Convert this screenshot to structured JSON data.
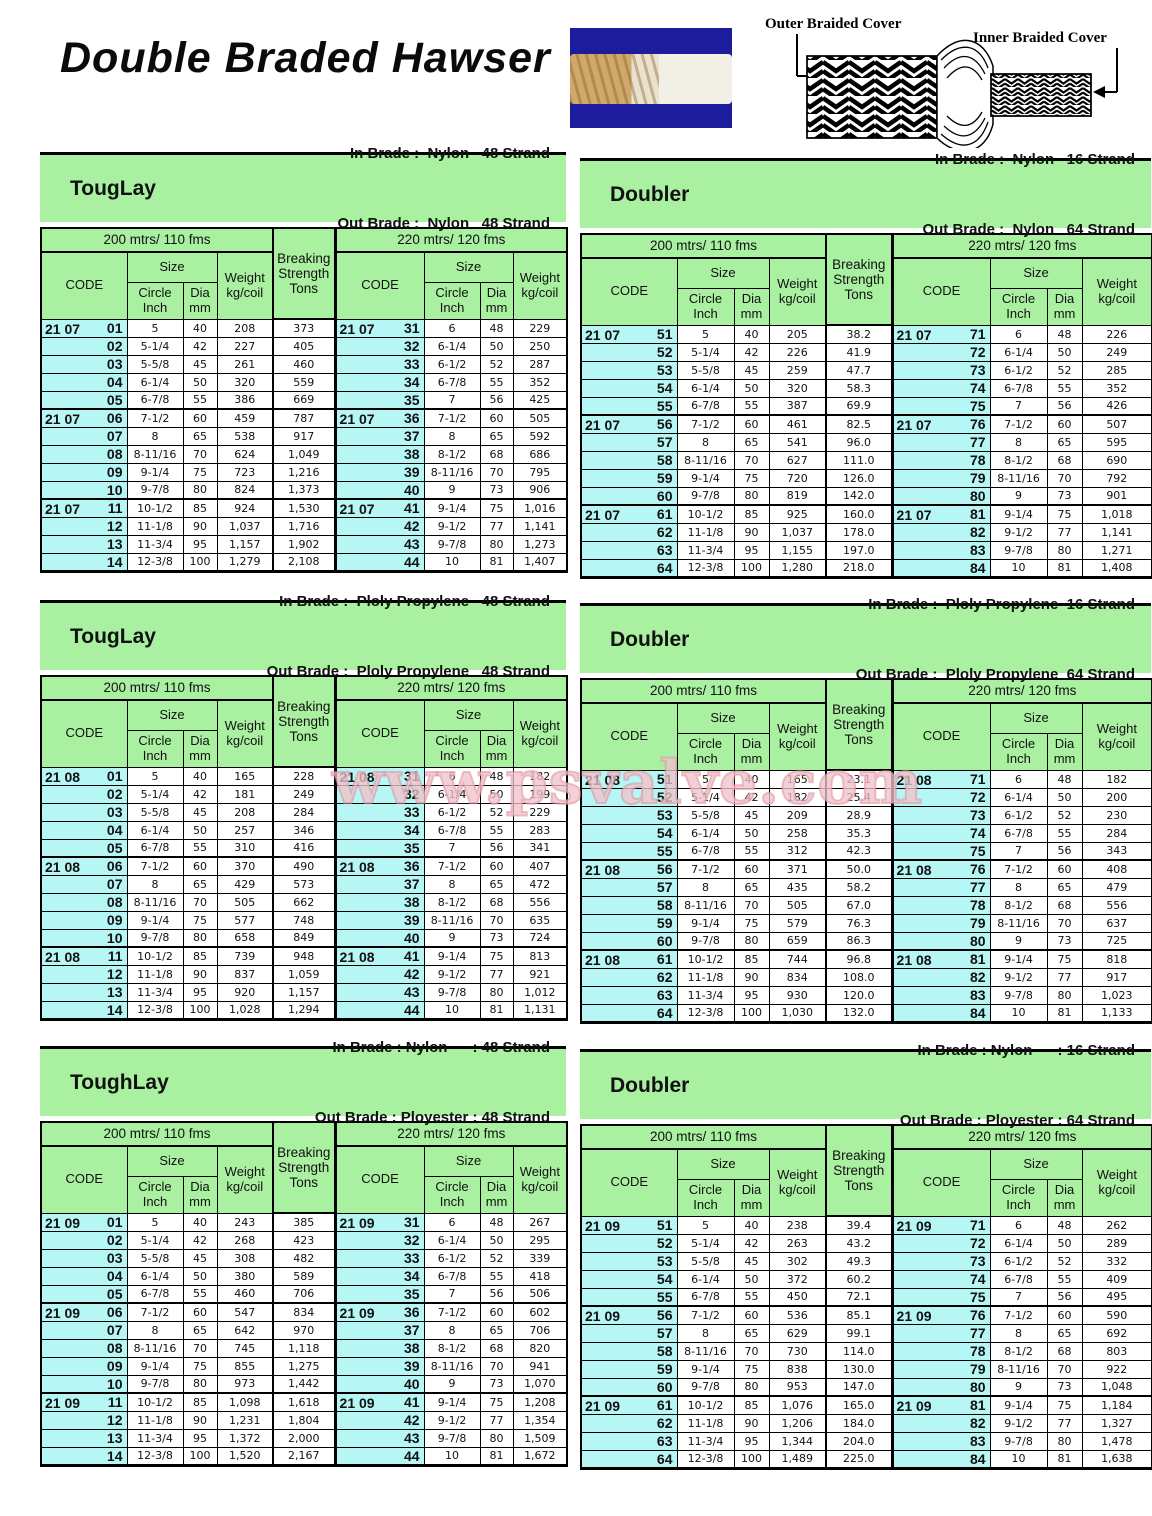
{
  "page": {
    "title": "Double Braded Hawser",
    "watermark": "www.psvalve.com"
  },
  "diagram": {
    "outer_label": "Outer Braided Cover",
    "inner_label": "Inner Braided Cover"
  },
  "colors": {
    "header_green": "#a9f0a1",
    "code_cyan": "#b6f6f4",
    "watermark_pink": "#e094a0",
    "photo_blue": "#1c1c9c"
  },
  "headers": {
    "len200": "200 mtrs/ 110 fms",
    "len220": "220 mtrs/ 120 fms",
    "code": "CODE",
    "size": "Size",
    "circle": "Circle Inch",
    "dia": "Dia mm",
    "weight": "Weight kg/coil",
    "breaking": "Breaking Strength Tons"
  },
  "tables": [
    {
      "title": "TougLay",
      "in_brade": "In Brade :  Nylon   48 Strand",
      "out_brade": "Out Brade :  Nylon   48 Strand",
      "rows": [
        [
          "21 07",
          "01",
          "5",
          "40",
          "208",
          "373",
          "21 07",
          "31",
          "6",
          "48",
          "229"
        ],
        [
          "",
          "02",
          "5-1/4",
          "42",
          "227",
          "405",
          "",
          "32",
          "6-1/4",
          "50",
          "250"
        ],
        [
          "",
          "03",
          "5-5/8",
          "45",
          "261",
          "460",
          "",
          "33",
          "6-1/2",
          "52",
          "287"
        ],
        [
          "",
          "04",
          "6-1/4",
          "50",
          "320",
          "559",
          "",
          "34",
          "6-7/8",
          "55",
          "352"
        ],
        [
          "",
          "05",
          "6-7/8",
          "55",
          "386",
          "669",
          "",
          "35",
          "7",
          "56",
          "425"
        ],
        [
          "21 07",
          "06",
          "7-1/2",
          "60",
          "459",
          "787",
          "21 07",
          "36",
          "7-1/2",
          "60",
          "505"
        ],
        [
          "",
          "07",
          "8",
          "65",
          "538",
          "917",
          "",
          "37",
          "8",
          "65",
          "592"
        ],
        [
          "",
          "08",
          "8-11/16",
          "70",
          "624",
          "1,049",
          "",
          "38",
          "8-1/2",
          "68",
          "686"
        ],
        [
          "",
          "09",
          "9-1/4",
          "75",
          "723",
          "1,216",
          "",
          "39",
          "8-11/16",
          "70",
          "795"
        ],
        [
          "",
          "10",
          "9-7/8",
          "80",
          "824",
          "1,373",
          "",
          "40",
          "9",
          "73",
          "906"
        ],
        [
          "21 07",
          "11",
          "10-1/2",
          "85",
          "924",
          "1,530",
          "21 07",
          "41",
          "9-1/4",
          "75",
          "1,016"
        ],
        [
          "",
          "12",
          "11-1/8",
          "90",
          "1,037",
          "1,716",
          "",
          "42",
          "9-1/2",
          "77",
          "1,141"
        ],
        [
          "",
          "13",
          "11-3/4",
          "95",
          "1,157",
          "1,902",
          "",
          "43",
          "9-7/8",
          "80",
          "1,273"
        ],
        [
          "",
          "14",
          "12-3/8",
          "100",
          "1,279",
          "2,108",
          "",
          "44",
          "10",
          "81",
          "1,407"
        ]
      ]
    },
    {
      "title": "Doubler",
      "in_brade": "In Brade :  Nylon   16 Strand",
      "out_brade": "Out Brade :  Nylon   64 Strand",
      "rows": [
        [
          "21 07",
          "51",
          "5",
          "40",
          "205",
          "38.2",
          "21 07",
          "71",
          "6",
          "48",
          "226"
        ],
        [
          "",
          "52",
          "5-1/4",
          "42",
          "226",
          "41.9",
          "",
          "72",
          "6-1/4",
          "50",
          "249"
        ],
        [
          "",
          "53",
          "5-5/8",
          "45",
          "259",
          "47.7",
          "",
          "73",
          "6-1/2",
          "52",
          "285"
        ],
        [
          "",
          "54",
          "6-1/4",
          "50",
          "320",
          "58.3",
          "",
          "74",
          "6-7/8",
          "55",
          "352"
        ],
        [
          "",
          "55",
          "6-7/8",
          "55",
          "387",
          "69.9",
          "",
          "75",
          "7",
          "56",
          "426"
        ],
        [
          "21 07",
          "56",
          "7-1/2",
          "60",
          "461",
          "82.5",
          "21 07",
          "76",
          "7-1/2",
          "60",
          "507"
        ],
        [
          "",
          "57",
          "8",
          "65",
          "541",
          "96.0",
          "",
          "77",
          "8",
          "65",
          "595"
        ],
        [
          "",
          "58",
          "8-11/16",
          "70",
          "627",
          "111.0",
          "",
          "78",
          "8-1/2",
          "68",
          "690"
        ],
        [
          "",
          "59",
          "9-1/4",
          "75",
          "720",
          "126.0",
          "",
          "79",
          "8-11/16",
          "70",
          "792"
        ],
        [
          "",
          "60",
          "9-7/8",
          "80",
          "819",
          "142.0",
          "",
          "80",
          "9",
          "73",
          "901"
        ],
        [
          "21 07",
          "61",
          "10-1/2",
          "85",
          "925",
          "160.0",
          "21 07",
          "81",
          "9-1/4",
          "75",
          "1,018"
        ],
        [
          "",
          "62",
          "11-1/8",
          "90",
          "1,037",
          "178.0",
          "",
          "82",
          "9-1/2",
          "77",
          "1,141"
        ],
        [
          "",
          "63",
          "11-3/4",
          "95",
          "1,155",
          "197.0",
          "",
          "83",
          "9-7/8",
          "80",
          "1,271"
        ],
        [
          "",
          "64",
          "12-3/8",
          "100",
          "1,280",
          "218.0",
          "",
          "84",
          "10",
          "81",
          "1,408"
        ]
      ]
    },
    {
      "title": "TougLay",
      "in_brade": "In Brade :  Ploly Propylene   48 Strand",
      "out_brade": "Out Brade :  Ploly Propylene   48 Strand",
      "rows": [
        [
          "21 08",
          "01",
          "5",
          "40",
          "165",
          "228",
          "21 08",
          "31",
          "6",
          "48",
          "182"
        ],
        [
          "",
          "02",
          "5-1/4",
          "42",
          "181",
          "249",
          "",
          "32",
          "6-1/4",
          "50",
          "199"
        ],
        [
          "",
          "03",
          "5-5/8",
          "45",
          "208",
          "284",
          "",
          "33",
          "6-1/2",
          "52",
          "229"
        ],
        [
          "",
          "04",
          "6-1/4",
          "50",
          "257",
          "346",
          "",
          "34",
          "6-7/8",
          "55",
          "283"
        ],
        [
          "",
          "05",
          "6-7/8",
          "55",
          "310",
          "416",
          "",
          "35",
          "7",
          "56",
          "341"
        ],
        [
          "21 08",
          "06",
          "7-1/2",
          "60",
          "370",
          "490",
          "21 08",
          "36",
          "7-1/2",
          "60",
          "407"
        ],
        [
          "",
          "07",
          "8",
          "65",
          "429",
          "573",
          "",
          "37",
          "8",
          "65",
          "472"
        ],
        [
          "",
          "08",
          "8-11/16",
          "70",
          "505",
          "662",
          "",
          "38",
          "8-1/2",
          "68",
          "556"
        ],
        [
          "",
          "09",
          "9-1/4",
          "75",
          "577",
          "748",
          "",
          "39",
          "8-11/16",
          "70",
          "635"
        ],
        [
          "",
          "10",
          "9-7/8",
          "80",
          "658",
          "849",
          "",
          "40",
          "9",
          "73",
          "724"
        ],
        [
          "21 08",
          "11",
          "10-1/2",
          "85",
          "739",
          "948",
          "21 08",
          "41",
          "9-1/4",
          "75",
          "813"
        ],
        [
          "",
          "12",
          "11-1/8",
          "90",
          "837",
          "1,059",
          "",
          "42",
          "9-1/2",
          "77",
          "921"
        ],
        [
          "",
          "13",
          "11-3/4",
          "95",
          "920",
          "1,157",
          "",
          "43",
          "9-7/8",
          "80",
          "1,012"
        ],
        [
          "",
          "14",
          "12-3/8",
          "100",
          "1,028",
          "1,294",
          "",
          "44",
          "10",
          "81",
          "1,131"
        ]
      ]
    },
    {
      "title": "Doubler",
      "in_brade": "In Brade :  Ploly Propylene  16 Strand",
      "out_brade": "Out Brade :  Ploly Propylene  64 Strand",
      "rows": [
        [
          "21 08",
          "51",
          "5",
          "40",
          "165",
          "23.1",
          "21 08",
          "71",
          "6",
          "48",
          "182"
        ],
        [
          "",
          "52",
          "5-1/4",
          "42",
          "182",
          "25.4",
          "",
          "72",
          "6-1/4",
          "50",
          "200"
        ],
        [
          "",
          "53",
          "5-5/8",
          "45",
          "209",
          "28.9",
          "",
          "73",
          "6-1/2",
          "52",
          "230"
        ],
        [
          "",
          "54",
          "6-1/4",
          "50",
          "258",
          "35.3",
          "",
          "74",
          "6-7/8",
          "55",
          "284"
        ],
        [
          "",
          "55",
          "6-7/8",
          "55",
          "312",
          "42.3",
          "",
          "75",
          "7",
          "56",
          "343"
        ],
        [
          "21 08",
          "56",
          "7-1/2",
          "60",
          "371",
          "50.0",
          "21 08",
          "76",
          "7-1/2",
          "60",
          "408"
        ],
        [
          "",
          "57",
          "8",
          "65",
          "435",
          "58.2",
          "",
          "77",
          "8",
          "65",
          "479"
        ],
        [
          "",
          "58",
          "8-11/16",
          "70",
          "505",
          "67.0",
          "",
          "78",
          "8-1/2",
          "68",
          "556"
        ],
        [
          "",
          "59",
          "9-1/4",
          "75",
          "579",
          "76.3",
          "",
          "79",
          "8-11/16",
          "70",
          "637"
        ],
        [
          "",
          "60",
          "9-7/8",
          "80",
          "659",
          "86.3",
          "",
          "80",
          "9",
          "73",
          "725"
        ],
        [
          "21 08",
          "61",
          "10-1/2",
          "85",
          "744",
          "96.8",
          "21 08",
          "81",
          "9-1/4",
          "75",
          "818"
        ],
        [
          "",
          "62",
          "11-1/8",
          "90",
          "834",
          "108.0",
          "",
          "82",
          "9-1/2",
          "77",
          "917"
        ],
        [
          "",
          "63",
          "11-3/4",
          "95",
          "930",
          "120.0",
          "",
          "83",
          "9-7/8",
          "80",
          "1,023"
        ],
        [
          "",
          "64",
          "12-3/8",
          "100",
          "1,030",
          "132.0",
          "",
          "84",
          "10",
          "81",
          "1,133"
        ]
      ]
    },
    {
      "title": "ToughLay",
      "in_brade": "In Brade : Nylon      : 48 Strand",
      "out_brade": "Out Brade : Ployester : 48 Strand",
      "rows": [
        [
          "21 09",
          "01",
          "5",
          "40",
          "243",
          "385",
          "21 09",
          "31",
          "6",
          "48",
          "267"
        ],
        [
          "",
          "02",
          "5-1/4",
          "42",
          "268",
          "423",
          "",
          "32",
          "6-1/4",
          "50",
          "295"
        ],
        [
          "",
          "03",
          "5-5/8",
          "45",
          "308",
          "482",
          "",
          "33",
          "6-1/2",
          "52",
          "339"
        ],
        [
          "",
          "04",
          "6-1/4",
          "50",
          "380",
          "589",
          "",
          "34",
          "6-7/8",
          "55",
          "418"
        ],
        [
          "",
          "05",
          "6-7/8",
          "55",
          "460",
          "706",
          "",
          "35",
          "7",
          "56",
          "506"
        ],
        [
          "21 09",
          "06",
          "7-1/2",
          "60",
          "547",
          "834",
          "21 09",
          "36",
          "7-1/2",
          "60",
          "602"
        ],
        [
          "",
          "07",
          "8",
          "65",
          "642",
          "970",
          "",
          "37",
          "8",
          "65",
          "706"
        ],
        [
          "",
          "08",
          "8-11/16",
          "70",
          "745",
          "1,118",
          "",
          "38",
          "8-1/2",
          "68",
          "820"
        ],
        [
          "",
          "09",
          "9-1/4",
          "75",
          "855",
          "1,275",
          "",
          "39",
          "8-11/16",
          "70",
          "941"
        ],
        [
          "",
          "10",
          "9-7/8",
          "80",
          "973",
          "1,442",
          "",
          "40",
          "9",
          "73",
          "1,070"
        ],
        [
          "21 09",
          "11",
          "10-1/2",
          "85",
          "1,098",
          "1,618",
          "21 09",
          "41",
          "9-1/4",
          "75",
          "1,208"
        ],
        [
          "",
          "12",
          "11-1/8",
          "90",
          "1,231",
          "1,804",
          "",
          "42",
          "9-1/2",
          "77",
          "1,354"
        ],
        [
          "",
          "13",
          "11-3/4",
          "95",
          "1,372",
          "2,000",
          "",
          "43",
          "9-7/8",
          "80",
          "1,509"
        ],
        [
          "",
          "14",
          "12-3/8",
          "100",
          "1,520",
          "2,167",
          "",
          "44",
          "10",
          "81",
          "1,672"
        ]
      ]
    },
    {
      "title": "Doubler",
      "in_brade": "In Brade : Nylon      : 16 Strand",
      "out_brade": "Out Brade : Ployester : 64 Strand",
      "rows": [
        [
          "21 09",
          "51",
          "5",
          "40",
          "238",
          "39.4",
          "21 09",
          "71",
          "6",
          "48",
          "262"
        ],
        [
          "",
          "52",
          "5-1/4",
          "42",
          "263",
          "43.2",
          "",
          "72",
          "6-1/4",
          "50",
          "289"
        ],
        [
          "",
          "53",
          "5-5/8",
          "45",
          "302",
          "49.3",
          "",
          "73",
          "6-1/2",
          "52",
          "332"
        ],
        [
          "",
          "54",
          "6-1/4",
          "50",
          "372",
          "60.2",
          "",
          "74",
          "6-7/8",
          "55",
          "409"
        ],
        [
          "",
          "55",
          "6-7/8",
          "55",
          "450",
          "72.1",
          "",
          "75",
          "7",
          "56",
          "495"
        ],
        [
          "21 09",
          "56",
          "7-1/2",
          "60",
          "536",
          "85.1",
          "21 09",
          "76",
          "7-1/2",
          "60",
          "590"
        ],
        [
          "",
          "57",
          "8",
          "65",
          "629",
          "99.1",
          "",
          "77",
          "8",
          "65",
          "692"
        ],
        [
          "",
          "58",
          "8-11/16",
          "70",
          "730",
          "114.0",
          "",
          "78",
          "8-1/2",
          "68",
          "803"
        ],
        [
          "",
          "59",
          "9-1/4",
          "75",
          "838",
          "130.0",
          "",
          "79",
          "8-11/16",
          "70",
          "922"
        ],
        [
          "",
          "60",
          "9-7/8",
          "80",
          "953",
          "147.0",
          "",
          "80",
          "9",
          "73",
          "1,048"
        ],
        [
          "21 09",
          "61",
          "10-1/2",
          "85",
          "1,076",
          "165.0",
          "21 09",
          "81",
          "9-1/4",
          "75",
          "1,184"
        ],
        [
          "",
          "62",
          "11-1/8",
          "90",
          "1,206",
          "184.0",
          "",
          "82",
          "9-1/2",
          "77",
          "1,327"
        ],
        [
          "",
          "63",
          "11-3/4",
          "95",
          "1,344",
          "204.0",
          "",
          "83",
          "9-7/8",
          "80",
          "1,478"
        ],
        [
          "",
          "64",
          "12-3/8",
          "100",
          "1,489",
          "225.0",
          "",
          "84",
          "10",
          "81",
          "1,638"
        ]
      ]
    }
  ]
}
